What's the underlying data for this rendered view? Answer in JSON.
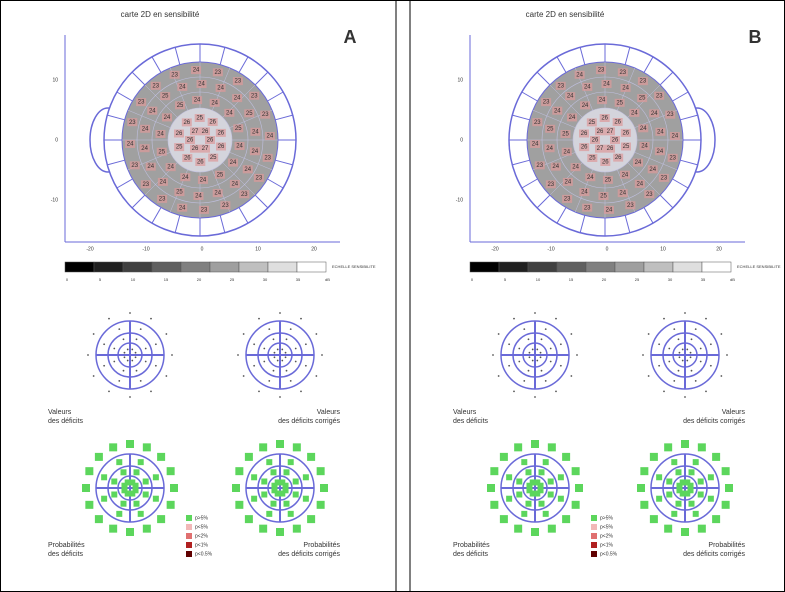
{
  "panels": [
    {
      "label": "A",
      "map_title": "carte 2D en sensibilité",
      "x_ticks": [
        "-20",
        "-10",
        "0",
        "10",
        "20"
      ],
      "y_ticks": [
        "10",
        "0",
        "-10"
      ],
      "scale_ticks": [
        "0",
        "5",
        "10",
        "15",
        "20",
        "25",
        "30",
        "35"
      ],
      "scale_unit": "dB",
      "scale_title": "ECHELLE SENSIBILITE",
      "map_rings": [
        [
          26,
          27,
          26,
          26,
          27,
          26
        ],
        [
          26,
          25,
          26,
          26,
          25,
          26,
          26,
          25,
          26,
          26
        ],
        [
          24,
          25,
          24,
          24,
          24,
          25,
          24,
          24,
          25,
          24,
          24,
          24,
          25,
          24
        ],
        [
          24,
          24,
          24,
          25,
          24,
          24,
          24,
          24,
          24,
          25,
          24,
          24,
          24,
          24,
          25,
          24,
          24,
          24
        ],
        [
          23,
          23,
          24,
          23,
          23,
          23,
          24,
          23,
          23,
          23,
          23,
          24,
          23,
          23,
          23,
          23,
          24,
          23,
          23,
          23
        ]
      ],
      "values_left": [
        "Valeurs",
        "des déficits"
      ],
      "values_right": [
        "Valeurs",
        "des déficits corrigés"
      ],
      "prob_left": [
        "Probabilités",
        "des déficits"
      ],
      "prob_right": [
        "Probabilités",
        "des déficits corrigés"
      ],
      "legend": [
        {
          "label": "p>5%",
          "color": "#5cd65c"
        },
        {
          "label": "p<5%",
          "color": "#f2b8b8"
        },
        {
          "label": "p<2%",
          "color": "#e07070"
        },
        {
          "label": "p<1%",
          "color": "#b02020"
        },
        {
          "label": "p<0.5%",
          "color": "#600000"
        }
      ]
    },
    {
      "label": "B",
      "map_title": "carte 2D en sensibilité",
      "x_ticks": [
        "-20",
        "-10",
        "0",
        "10",
        "20"
      ],
      "y_ticks": [
        "10",
        "0",
        "-10"
      ],
      "scale_ticks": [
        "0",
        "5",
        "10",
        "15",
        "20",
        "25",
        "30",
        "35"
      ],
      "scale_unit": "dB",
      "scale_title": "ECHELLE SENSIBILITE",
      "map_rings": [
        [
          26,
          26,
          27,
          26,
          26,
          27
        ],
        [
          25,
          26,
          26,
          25,
          26,
          26,
          25,
          26,
          26,
          26
        ],
        [
          24,
          24,
          25,
          24,
          24,
          24,
          25,
          24,
          24,
          24,
          25,
          24,
          24,
          24
        ],
        [
          24,
          24,
          25,
          24,
          24,
          24,
          24,
          25,
          24,
          24,
          24,
          24,
          24,
          25,
          24,
          24,
          24,
          24
        ],
        [
          23,
          24,
          23,
          23,
          23,
          23,
          24,
          23,
          23,
          23,
          24,
          23,
          23,
          23,
          23,
          23,
          24,
          23,
          23,
          23
        ]
      ],
      "values_left": [
        "Valeurs",
        "des déficits"
      ],
      "values_right": [
        "Valeurs",
        "des déficits corrigés"
      ],
      "prob_left": [
        "Probabilités",
        "des déficits"
      ],
      "prob_right": [
        "Probabilités",
        "des déficits corrigés"
      ],
      "legend": [
        {
          "label": "p>5%",
          "color": "#5cd65c"
        },
        {
          "label": "p<5%",
          "color": "#f2b8b8"
        },
        {
          "label": "p<2%",
          "color": "#e07070"
        },
        {
          "label": "p<1%",
          "color": "#b02020"
        },
        {
          "label": "p<0.5%",
          "color": "#600000"
        }
      ]
    }
  ]
}
